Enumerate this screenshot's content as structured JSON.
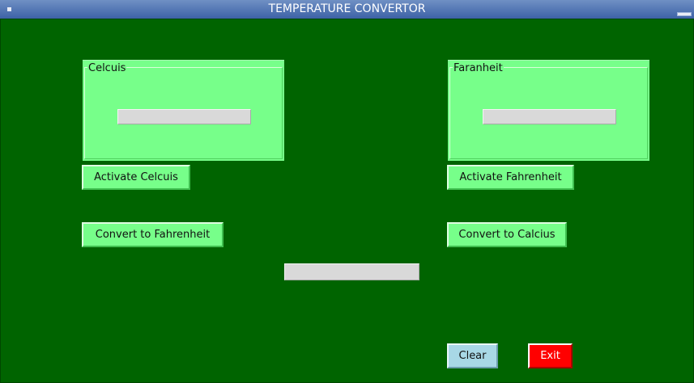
{
  "window": {
    "title": "TEMPERATURE CONVERTOR"
  },
  "celsius_group": {
    "label": "Celcuis",
    "input_value": ""
  },
  "fahrenheit_group": {
    "label": "Faranheit",
    "input_value": ""
  },
  "buttons": {
    "activate_celsius": "Activate Celcuis",
    "activate_fahrenheit": "Activate Fahrenheit",
    "convert_to_fahrenheit": "Convert to Fahrenheit",
    "convert_to_celsius": "Convert to Calcius",
    "clear": "Clear",
    "exit": "Exit"
  },
  "result": {
    "value": ""
  },
  "colors": {
    "background": "#006400",
    "panel": "#77ff8a",
    "entry": "#d9d9d9",
    "clear_button": "#a8d8e6",
    "exit_button": "#ff0000"
  }
}
